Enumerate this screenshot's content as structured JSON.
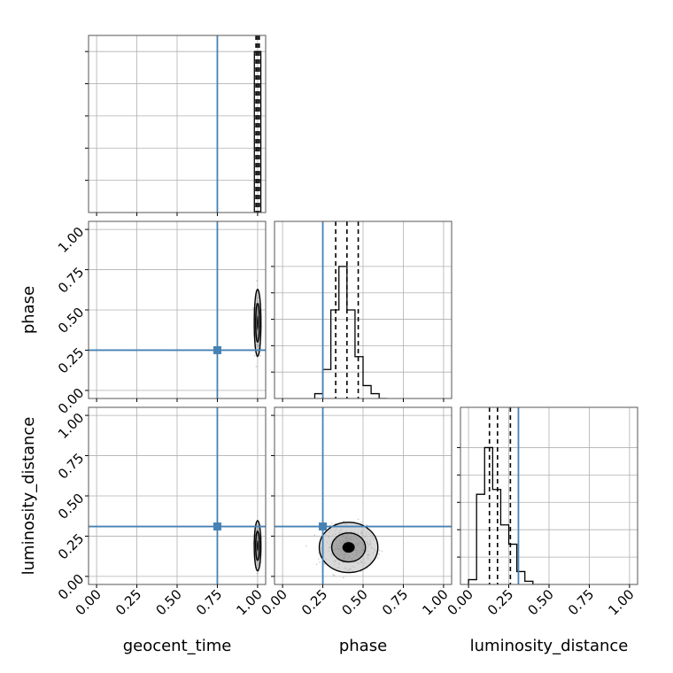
{
  "chart_data": {
    "type": "corner",
    "parameters": [
      "geocent_time",
      "phase",
      "luminosity_distance"
    ],
    "axis_labels": [
      "geocent_time",
      "phase",
      "luminosity_distance"
    ],
    "range": [
      -0.05,
      1.05
    ],
    "tick_values": [
      0.0,
      0.25,
      0.5,
      0.75,
      1.0
    ],
    "tick_labels": [
      "0.00",
      "0.25",
      "0.50",
      "0.75",
      "1.00"
    ],
    "truths": [
      0.75,
      0.25,
      0.31
    ],
    "truth_color": "#4682b4",
    "grid": true,
    "quantiles": {
      "geocent_time": [
        0.99,
        1.0,
        1.01
      ],
      "phase": [
        0.33,
        0.4,
        0.47
      ],
      "luminosity_distance": [
        0.13,
        0.18,
        0.26
      ]
    },
    "histograms": {
      "geocent_time": {
        "edges": [
          0.98,
          1.02
        ],
        "counts": [
          1.0
        ]
      },
      "phase": {
        "edges": [
          0.2,
          0.25,
          0.3,
          0.35,
          0.4,
          0.45,
          0.5,
          0.55,
          0.6,
          0.65
        ],
        "counts": [
          0.03,
          0.18,
          0.55,
          0.82,
          0.55,
          0.26,
          0.08,
          0.03,
          0.0
        ]
      },
      "luminosity_distance": {
        "edges": [
          0.0,
          0.05,
          0.1,
          0.15,
          0.2,
          0.25,
          0.3,
          0.35,
          0.4,
          0.45,
          0.5
        ],
        "counts": [
          0.03,
          0.56,
          0.85,
          0.59,
          0.37,
          0.25,
          0.08,
          0.02,
          0.0,
          0.0
        ]
      }
    },
    "joint": [
      {
        "x": "geocent_time",
        "y": "phase",
        "center": [
          1.0,
          0.42
        ],
        "spread": [
          0.008,
          0.08
        ]
      },
      {
        "x": "geocent_time",
        "y": "luminosity_distance",
        "center": [
          1.0,
          0.19
        ],
        "spread": [
          0.008,
          0.06
        ]
      },
      {
        "x": "phase",
        "y": "luminosity_distance",
        "center": [
          0.41,
          0.18
        ],
        "spread": [
          0.07,
          0.06
        ]
      }
    ]
  }
}
